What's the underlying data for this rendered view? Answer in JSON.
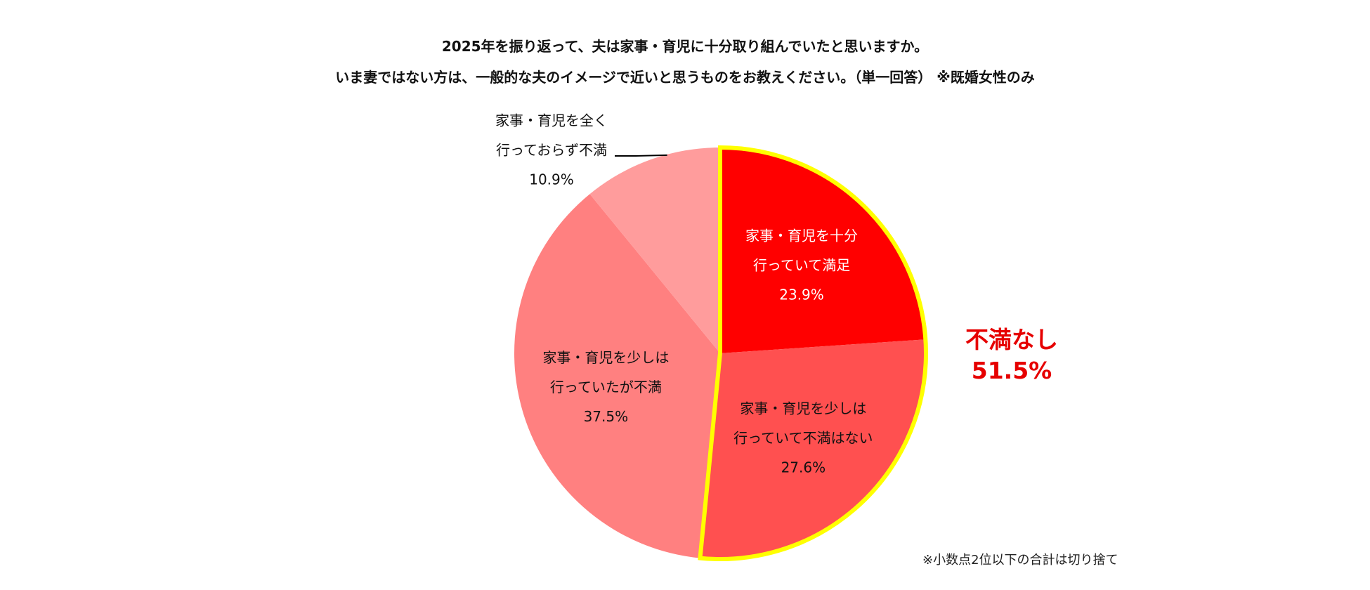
{
  "title_line1": "2025年を振り返って、夫は家事・育児に十分取り組んでいたと思いますか。",
  "title_line2": "いま妻ではない方は、一般的な夫のイメージで近いと思うものをお教えください。（単一回答） ※既婚女性のみ",
  "callout": {
    "label": "不満なし",
    "value": "51.5%"
  },
  "note": "※小数点2位以下の合計は切り捨て",
  "chart_data": {
    "type": "pie",
    "title": "2025年を振り返って、夫は家事・育児に十分取り組んでいたと思いますか。",
    "slices": [
      {
        "lines": [
          "家事・育児を十分",
          "行っていて満足"
        ],
        "value": 23.9,
        "value_label": "23.9%",
        "color": "#ff0000",
        "label_color": "#ffffff",
        "highlight": true
      },
      {
        "lines": [
          "家事・育児を少しは",
          "行っていて不満はない"
        ],
        "value": 27.6,
        "value_label": "27.6%",
        "color": "#ff5050",
        "label_color": "#111111",
        "highlight": true
      },
      {
        "lines": [
          "家事・育児を少しは",
          "行っていたが不満"
        ],
        "value": 37.5,
        "value_label": "37.5%",
        "color": "#ff8080",
        "label_color": "#111111",
        "highlight": false
      },
      {
        "lines": [
          "家事・育児を全く",
          "行っておらず不満"
        ],
        "value": 10.9,
        "value_label": "10.9%",
        "color": "#ff9c9c",
        "label_color": "#111111",
        "highlight": false
      }
    ],
    "highlight_border_color": "#ffff00",
    "start": "12 o'clock",
    "direction": "clockwise"
  }
}
